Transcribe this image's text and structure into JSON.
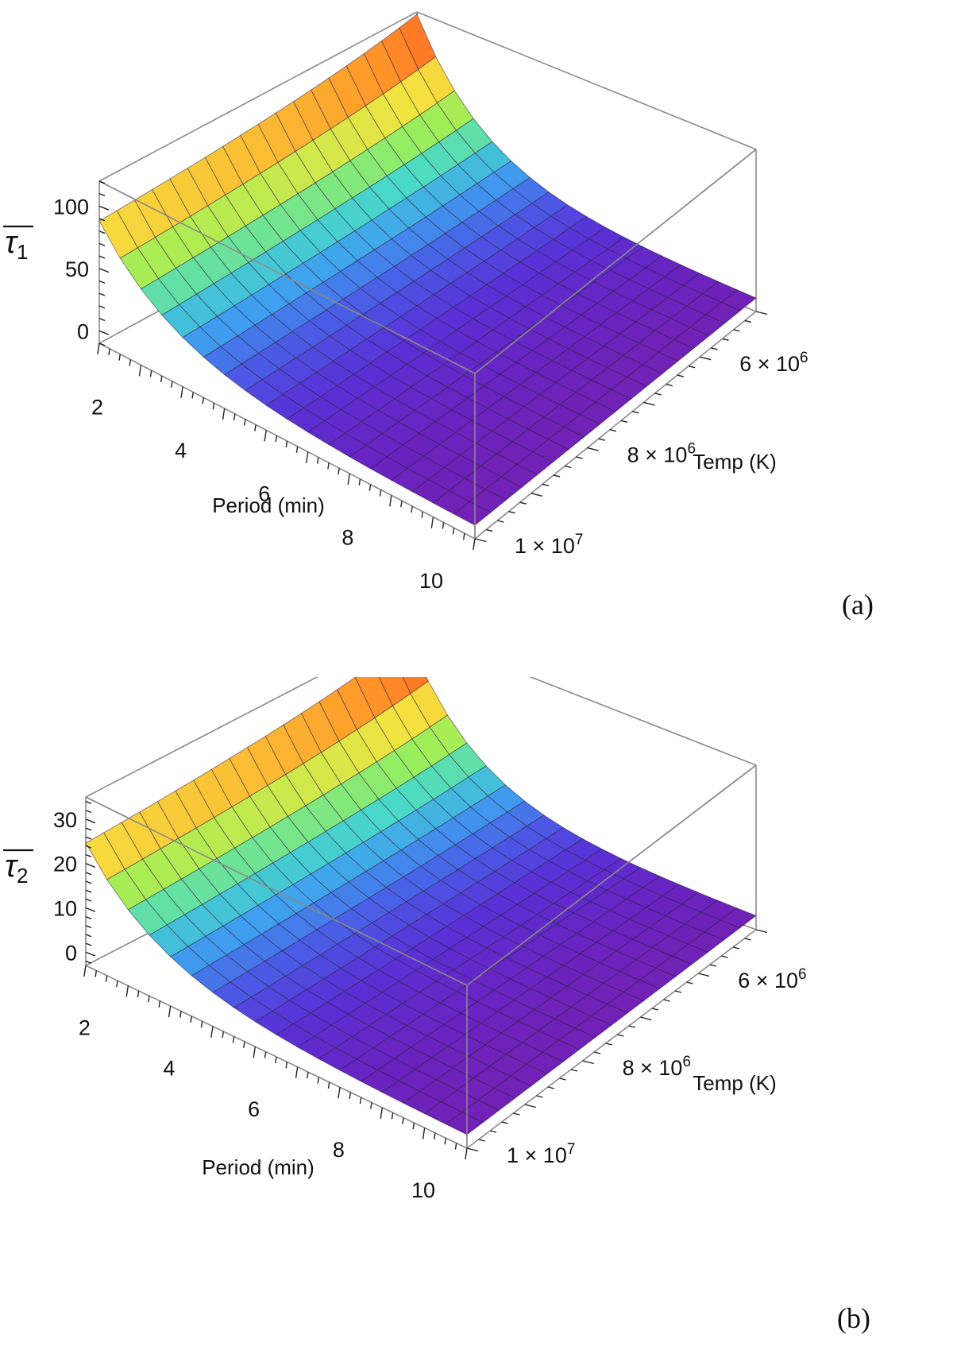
{
  "chart_data": [
    {
      "type": "surface3d",
      "panel_label": "(a)",
      "zlabel_symbol": "τ",
      "zlabel_subscript": "1",
      "xlabel": "Period (min)",
      "ylabel": "Temp (K)",
      "x_range": [
        1,
        10
      ],
      "y_range": [
        5000000,
        10000000
      ],
      "z_range": [
        -10,
        120
      ],
      "x_ticks": [
        "2",
        "4",
        "6",
        "8",
        "10"
      ],
      "x_tick_values": [
        2,
        4,
        6,
        8,
        10
      ],
      "y_ticks": [
        {
          "mantissa": "6",
          "exp": "6",
          "value": 6000000
        },
        {
          "mantissa": "8",
          "exp": "6",
          "value": 8000000
        },
        {
          "mantissa": "1",
          "exp": "7",
          "value": 10000000
        }
      ],
      "z_ticks": [
        "0",
        "50",
        "100"
      ],
      "z_tick_values": [
        0,
        50,
        100
      ],
      "z_max_value": 118,
      "colormap": [
        "#ff3a1f",
        "#ff9a2a",
        "#f5e340",
        "#9bef5a",
        "#49d9c8",
        "#3fa0ef",
        "#4a5de6",
        "#5930d6",
        "#6a22bf",
        "#7a20a8"
      ]
    },
    {
      "type": "surface3d",
      "panel_label": "(b)",
      "zlabel_symbol": "τ",
      "zlabel_subscript": "2",
      "xlabel": "Period (min)",
      "ylabel": "Temp (K)",
      "x_range": [
        1,
        10
      ],
      "y_range": [
        5000000,
        10000000
      ],
      "z_range": [
        -3,
        35
      ],
      "x_ticks": [
        "2",
        "4",
        "6",
        "8",
        "10"
      ],
      "x_tick_values": [
        2,
        4,
        6,
        8,
        10
      ],
      "y_ticks": [
        {
          "mantissa": "6",
          "exp": "6",
          "value": 6000000
        },
        {
          "mantissa": "8",
          "exp": "6",
          "value": 8000000
        },
        {
          "mantissa": "1",
          "exp": "7",
          "value": 10000000
        }
      ],
      "z_ticks": [
        "0",
        "10",
        "20",
        "30"
      ],
      "z_tick_values": [
        0,
        10,
        20,
        30
      ],
      "z_max_value": 33,
      "colormap": [
        "#ff3a1f",
        "#ff9a2a",
        "#f5e340",
        "#9bef5a",
        "#49d9c8",
        "#3fa0ef",
        "#4a5de6",
        "#5930d6",
        "#6a22bf",
        "#7a20a8"
      ]
    }
  ]
}
